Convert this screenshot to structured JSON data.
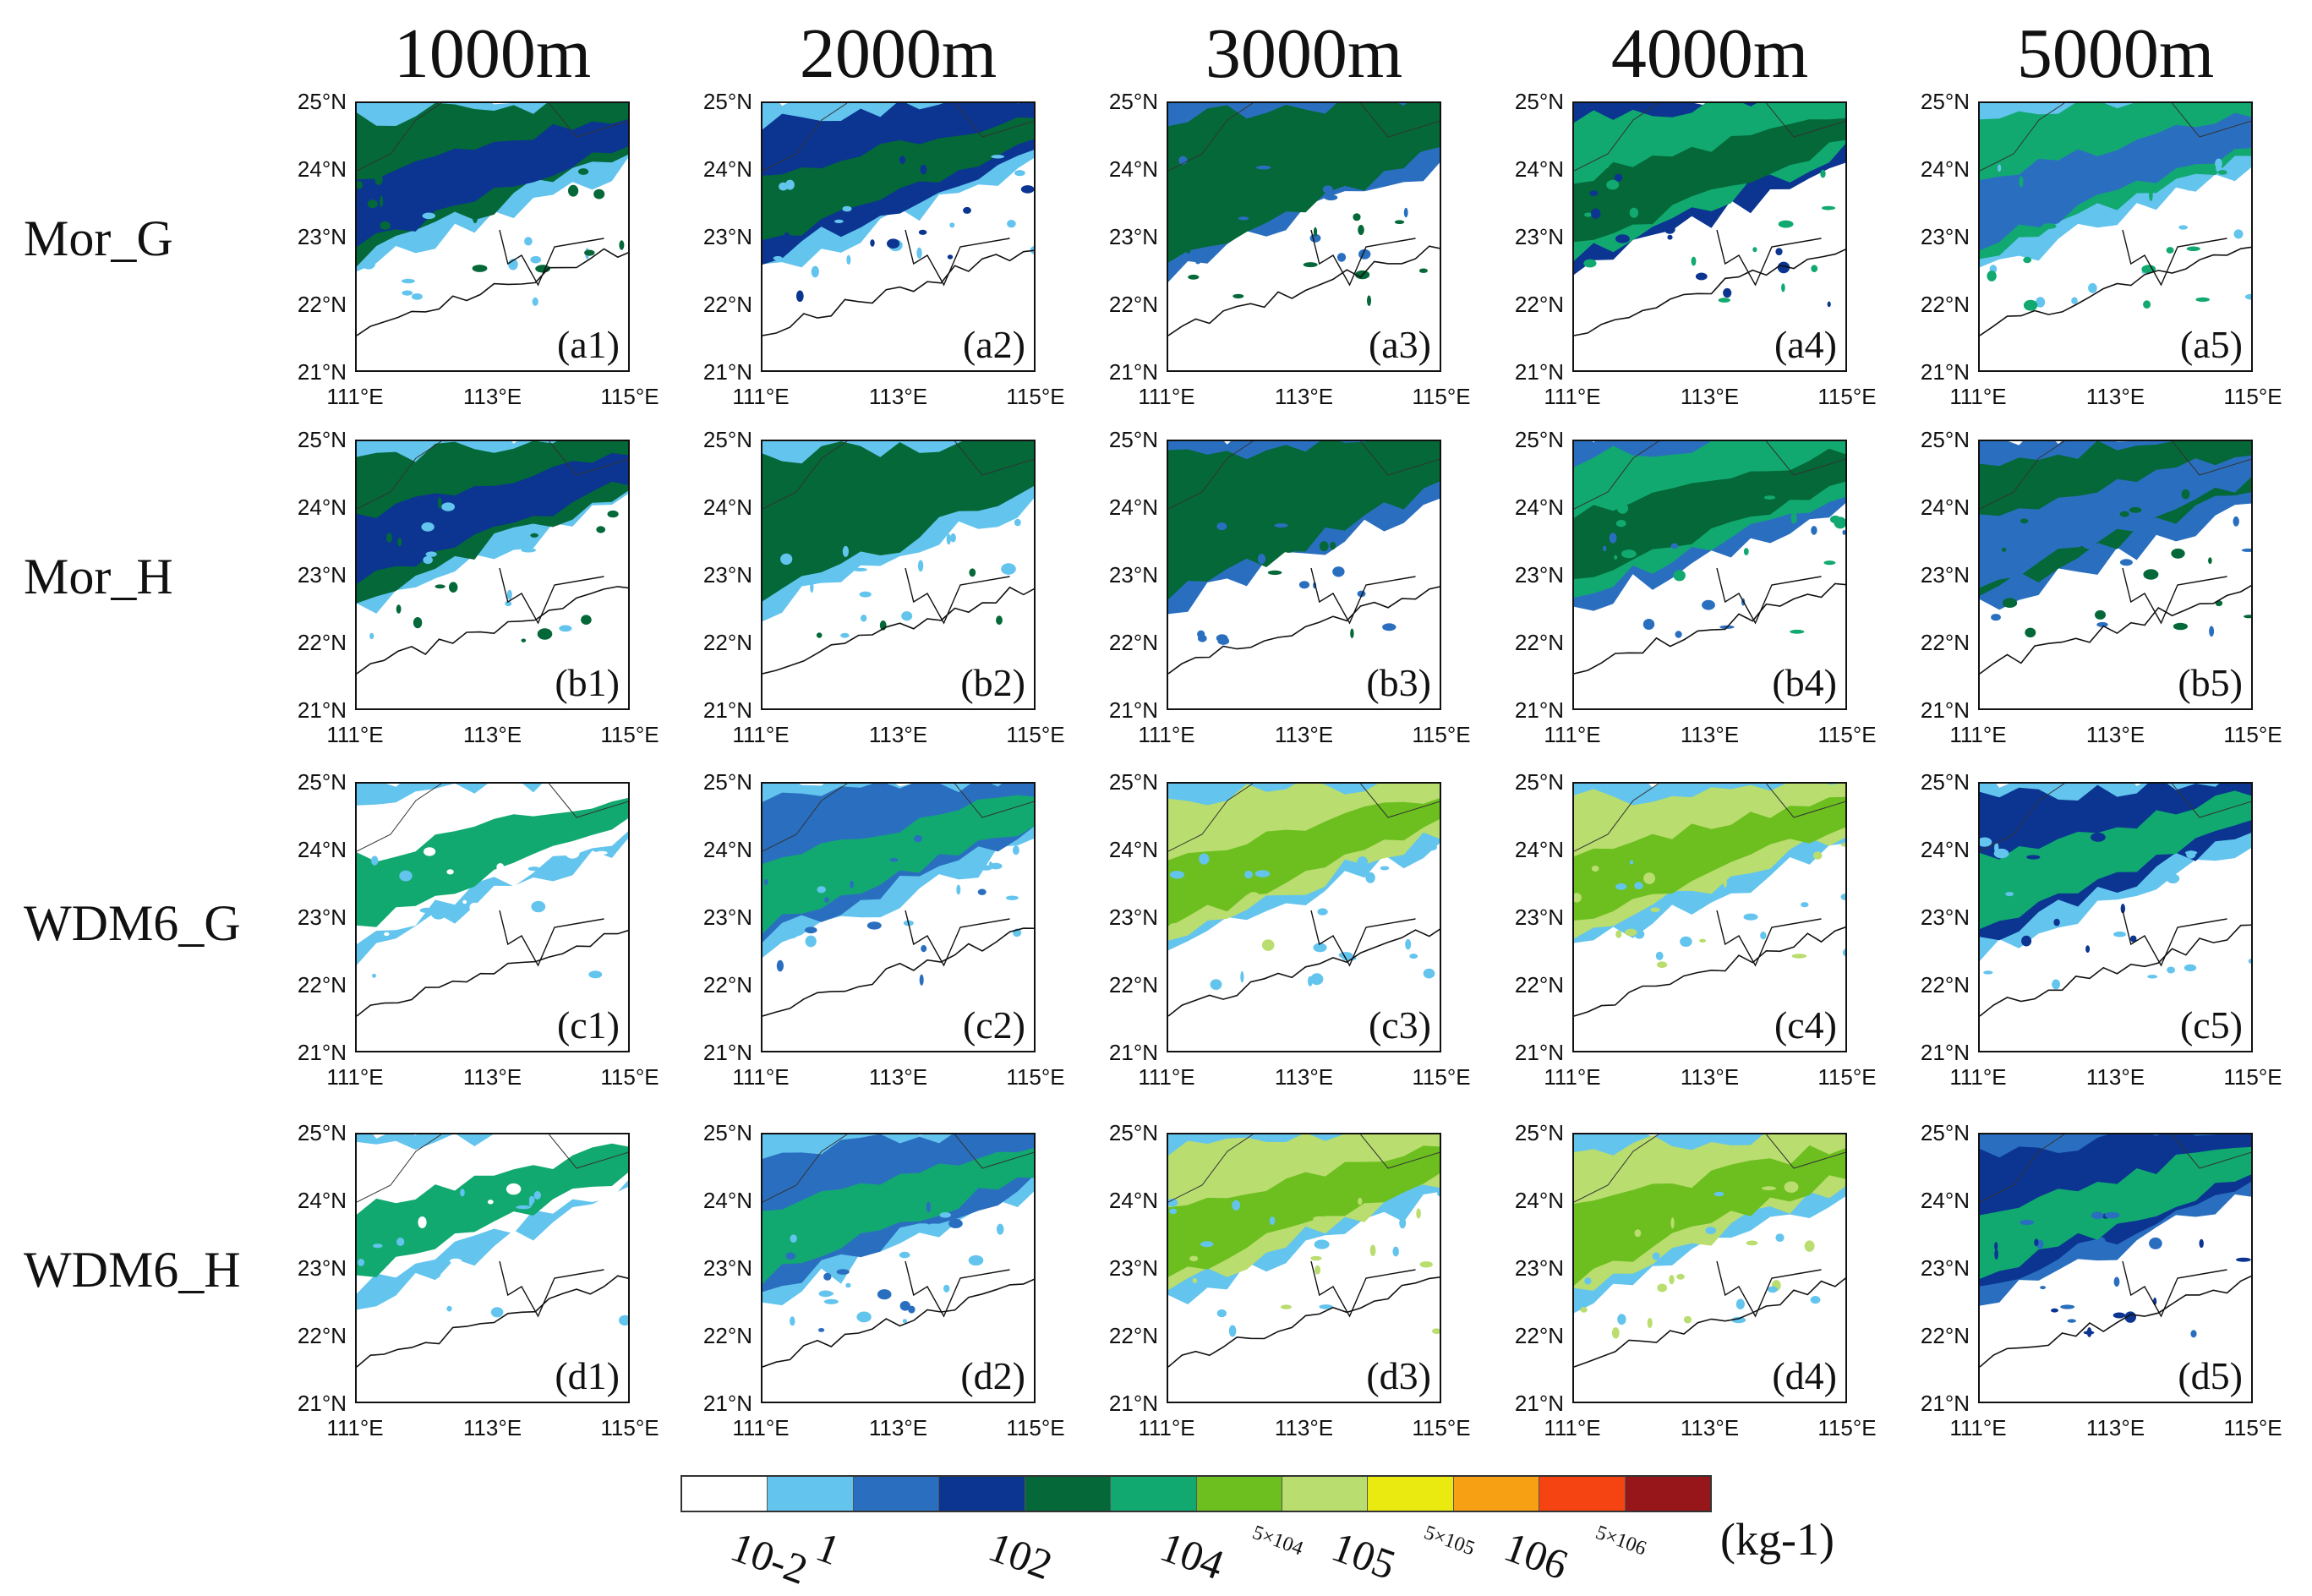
{
  "chart_data": {
    "type": "heatmap",
    "title": "",
    "columns": [
      "1000m",
      "2000m",
      "3000m",
      "4000m",
      "5000m"
    ],
    "rows": [
      "Mor_G",
      "Mor_H",
      "WDM6_G",
      "WDM6_H"
    ],
    "panel_tags": [
      [
        "(a1)",
        "(a2)",
        "(a3)",
        "(a4)",
        "(a5)"
      ],
      [
        "(b1)",
        "(b2)",
        "(b3)",
        "(b4)",
        "(b5)"
      ],
      [
        "(c1)",
        "(c2)",
        "(c3)",
        "(c4)",
        "(c5)"
      ],
      [
        "(d1)",
        "(d2)",
        "(d3)",
        "(d4)",
        "(d5)"
      ]
    ],
    "lat_ticks": [
      "25°N",
      "24°N",
      "23°N",
      "22°N",
      "21°N"
    ],
    "lon_ticks": [
      "111°E",
      "113°E",
      "115°E"
    ],
    "lat_range": [
      21,
      25
    ],
    "lon_range": [
      111,
      115
    ],
    "colorbar": {
      "colors": [
        "#ffffff",
        "#63c4ee",
        "#2a6fbf",
        "#0b3591",
        "#046838",
        "#11a970",
        "#6cbf1f",
        "#b9dd6e",
        "#eaea10",
        "#f7a013",
        "#f54412",
        "#96161a"
      ],
      "labels": [
        "10-2",
        "1",
        "102",
        "104",
        "5×104",
        "105",
        "5×105",
        "106",
        "5×106"
      ],
      "unit": "(kg-1)"
    },
    "intensity_levels": [
      [
        [
          3,
          4,
          1
        ],
        [
          4,
          3,
          1
        ],
        [
          4,
          4,
          2
        ],
        [
          4,
          5,
          3
        ],
        [
          2,
          5,
          1
        ]
      ],
      [
        [
          3,
          4,
          1
        ],
        [
          4,
          4,
          1
        ],
        [
          4,
          4,
          2
        ],
        [
          4,
          5,
          2
        ],
        [
          2,
          4,
          2
        ]
      ],
      [
        [
          5,
          0,
          1
        ],
        [
          5,
          2,
          1
        ],
        [
          6,
          7,
          1
        ],
        [
          6,
          7,
          1
        ],
        [
          5,
          3,
          1
        ]
      ],
      [
        [
          5,
          0,
          1
        ],
        [
          5,
          2,
          1
        ],
        [
          6,
          7,
          1
        ],
        [
          6,
          7,
          1
        ],
        [
          5,
          3,
          2
        ]
      ]
    ]
  }
}
